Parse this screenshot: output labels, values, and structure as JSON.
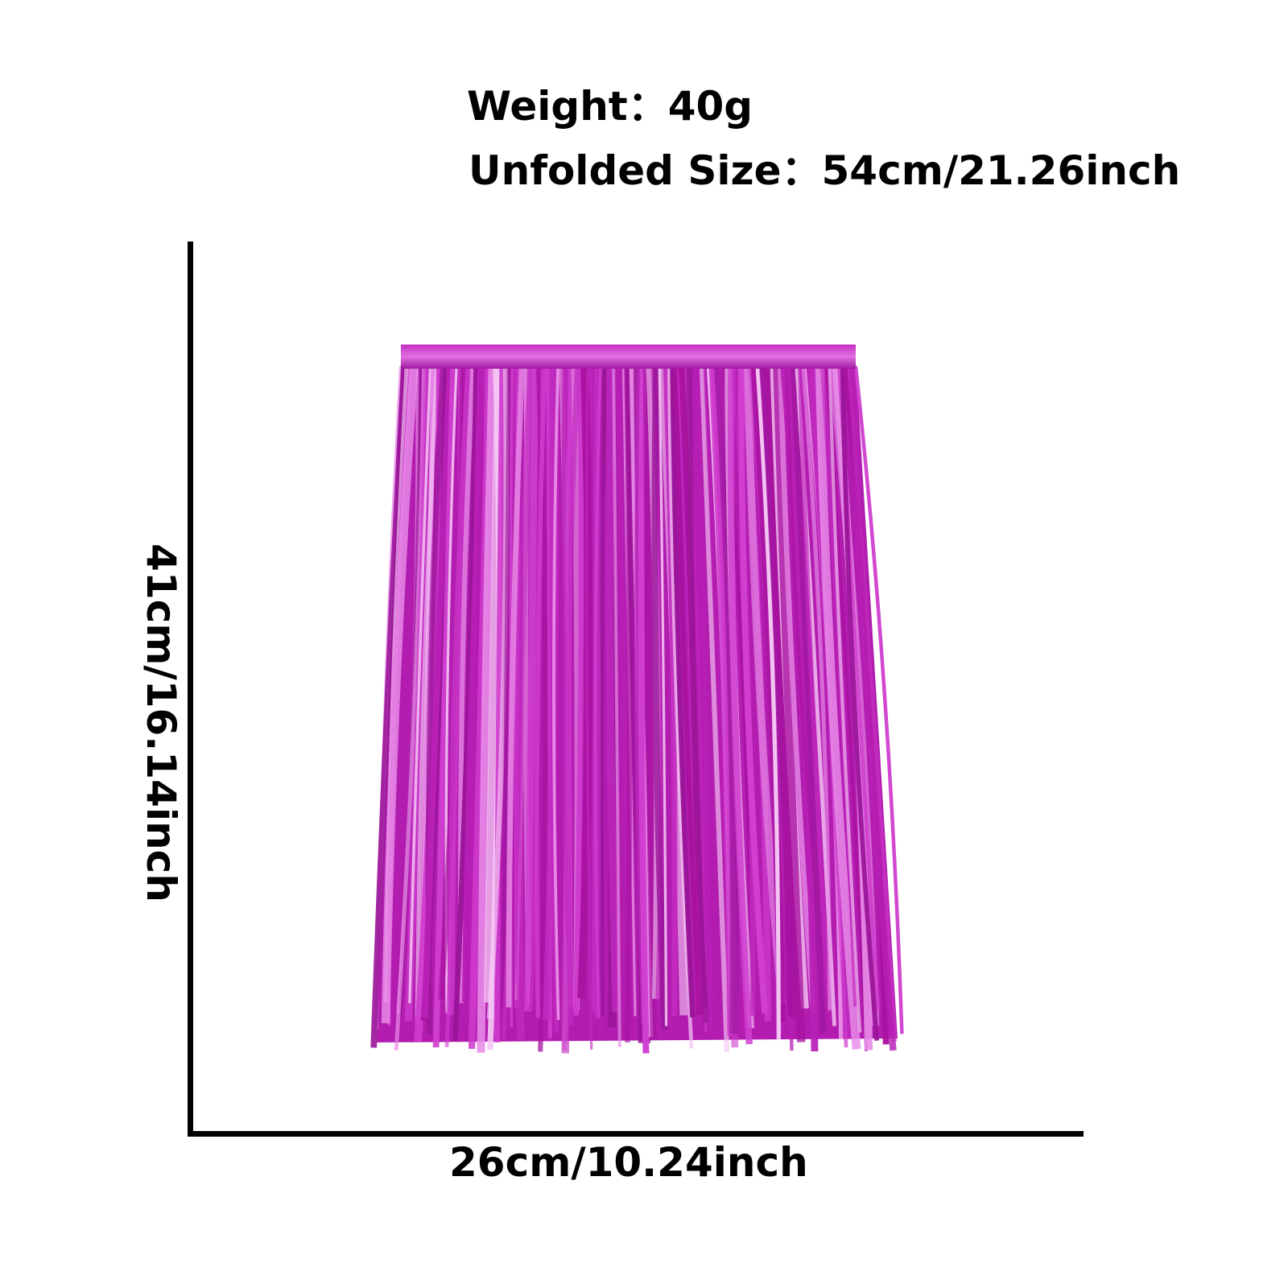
{
  "specs": {
    "weight": "Weight：40g",
    "unfolded_size": "Unfolded Size：54cm/21.26inch"
  },
  "dimensions": {
    "height": "41cm/16.14inch",
    "width": "26cm/10.24inch"
  },
  "product": {
    "name_icon": "metallic-fringe-skirt",
    "color": "#b81fb5"
  }
}
